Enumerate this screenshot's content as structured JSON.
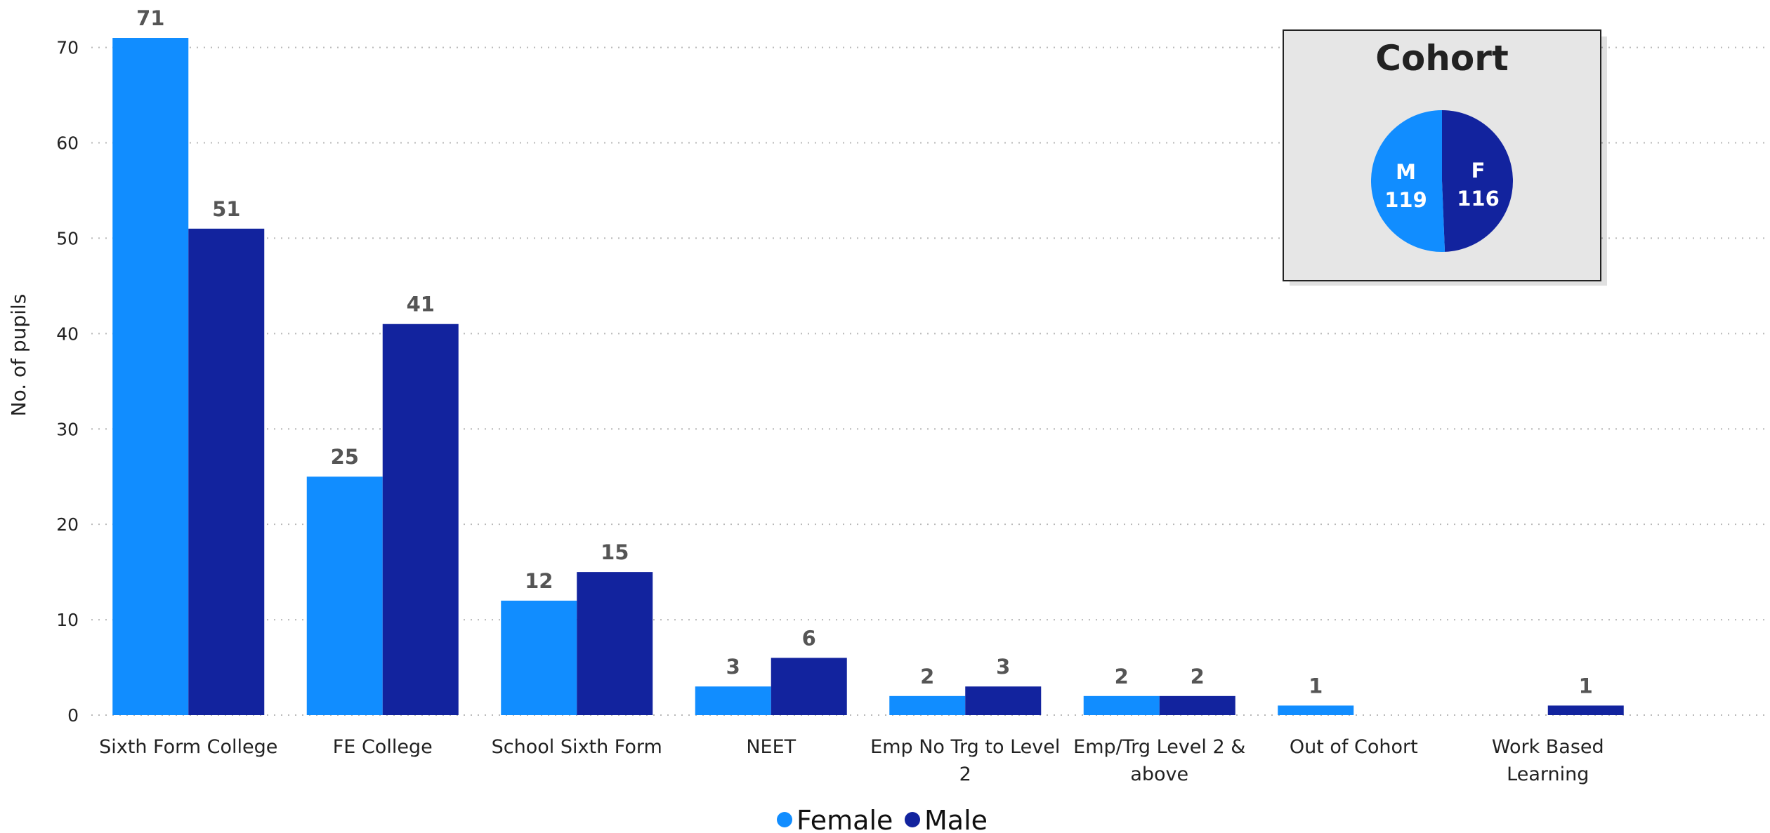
{
  "colors": {
    "female": "#118DFF",
    "male": "#12239E",
    "grid": "#b8b8b8",
    "panel_bg": "#e6e6e6",
    "panel_border": "#222222",
    "label": "#555555"
  },
  "chart_data": [
    {
      "type": "bar",
      "ylabel": "No. of pupils",
      "xlabel": "",
      "ylim": [
        0,
        71
      ],
      "yticks": [
        0,
        10,
        20,
        30,
        40,
        50,
        60,
        70
      ],
      "grid": true,
      "legend_position": "bottom-center",
      "categories": [
        [
          "Sixth Form College"
        ],
        [
          "FE College"
        ],
        [
          "School Sixth Form"
        ],
        [
          "NEET"
        ],
        [
          "Emp No Trg to Level",
          "2"
        ],
        [
          "Emp/Trg Level 2 &",
          "above"
        ],
        [
          "Out of Cohort"
        ],
        [
          "Work Based",
          "Learning"
        ]
      ],
      "series": [
        {
          "name": "Female",
          "values": [
            71,
            25,
            12,
            3,
            2,
            2,
            1,
            null
          ]
        },
        {
          "name": "Male",
          "values": [
            51,
            41,
            15,
            6,
            3,
            2,
            null,
            1
          ]
        }
      ]
    },
    {
      "type": "pie",
      "title": "Cohort",
      "slices": [
        {
          "label": "M",
          "value": 119,
          "color_key": "female"
        },
        {
          "label": "F",
          "value": 116,
          "color_key": "male"
        }
      ]
    }
  ]
}
